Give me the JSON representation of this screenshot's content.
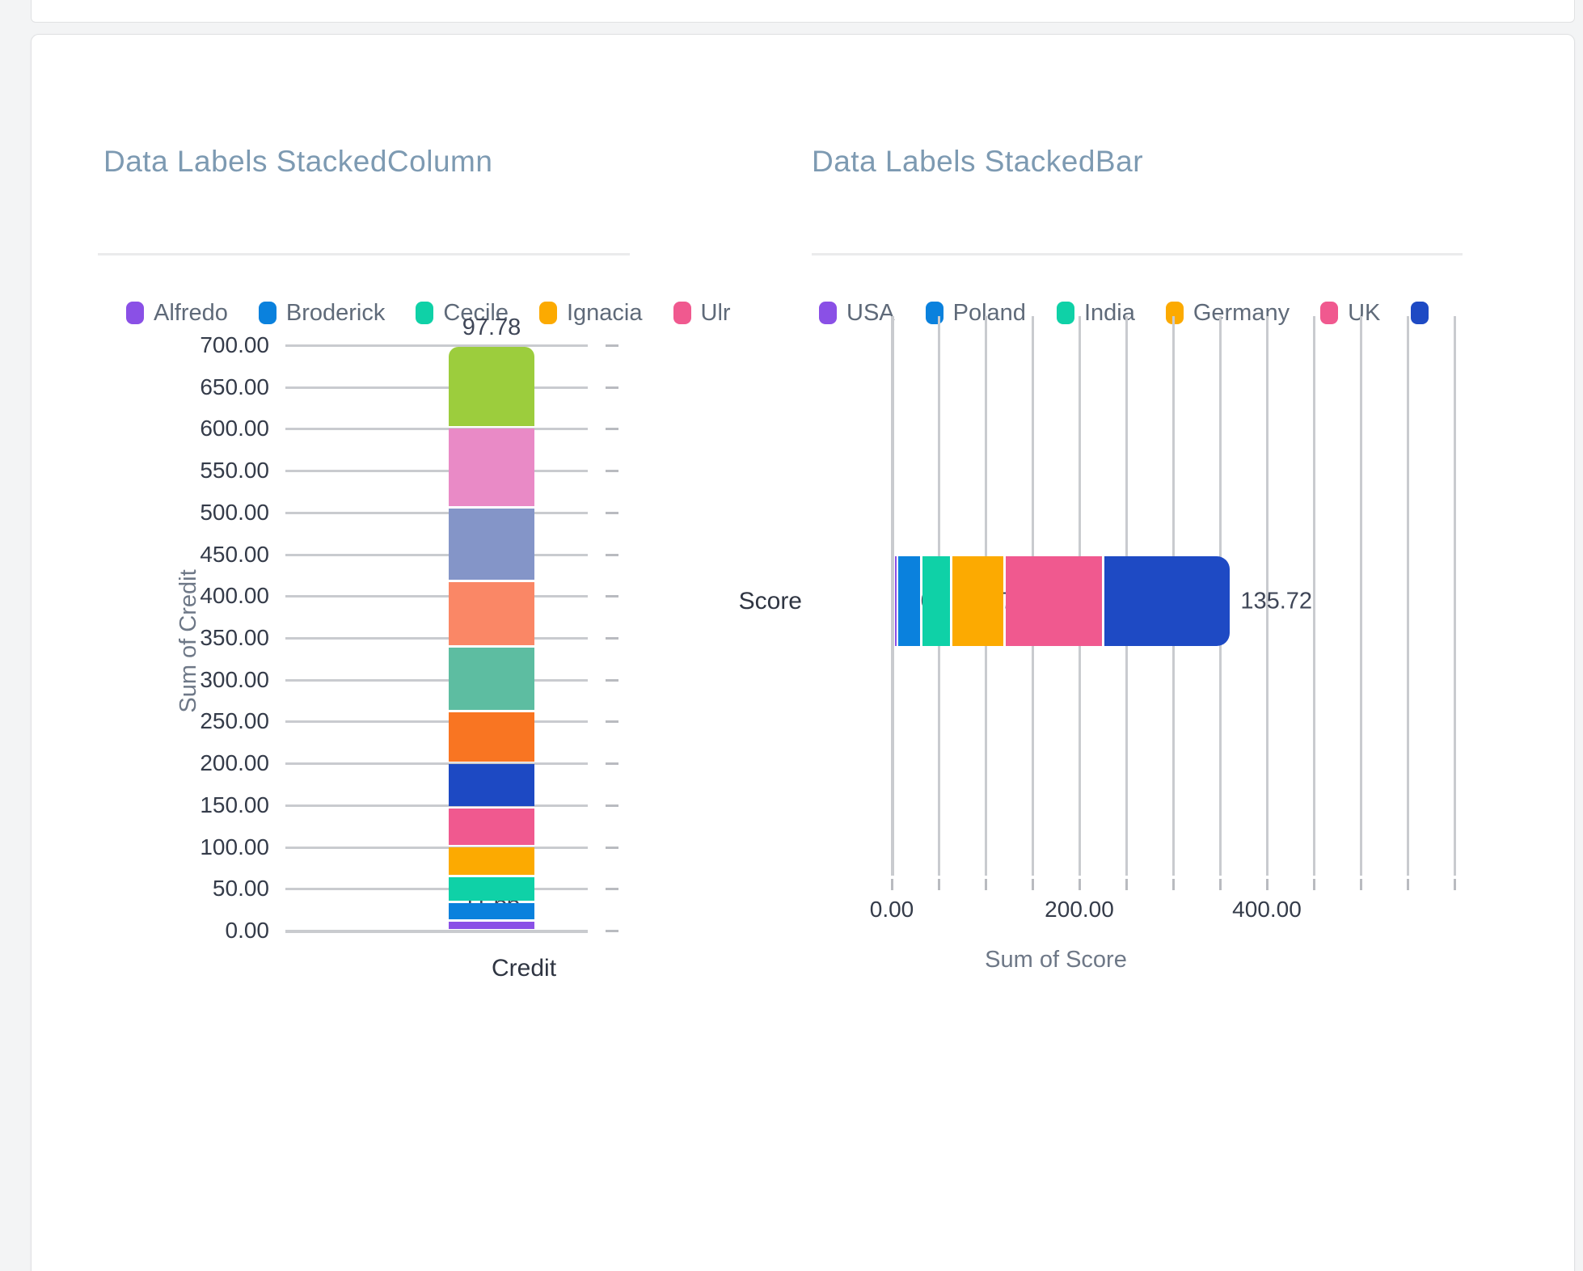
{
  "cards": {
    "top_strip": "",
    "background_color": "#f3f4f5"
  },
  "chart_data": [
    {
      "type": "bar",
      "subtype": "stacked-column",
      "title": "Data Labels StackedColumn",
      "categories": [
        "Credit"
      ],
      "xlabel": "Credit",
      "ylabel": "Sum of Credit",
      "ylim": [
        0,
        700
      ],
      "ytick_step": 50,
      "grid": true,
      "legend_position": "top",
      "y_tick_labels": [
        "0.00",
        "50.00",
        "100.00",
        "150.00",
        "200.00",
        "250.00",
        "300.00",
        "350.00",
        "400.00",
        "450.00",
        "500.00",
        "550.00",
        "600.00",
        "650.00",
        "700.00"
      ],
      "legend": [
        {
          "label": "Alfredo",
          "color": "#8a50e6"
        },
        {
          "label": "Broderick",
          "color": "#0a81dd"
        },
        {
          "label": "Cecile",
          "color": "#0fd1a7"
        },
        {
          "label": "Ignacia",
          "color": "#fcaa01"
        },
        {
          "label": "Ulr",
          "color": "#f0598f"
        }
      ],
      "series": [
        {
          "name": "Alfredo",
          "color": "#8a50e6",
          "value": 11.66,
          "label": "11.66",
          "estimated": false
        },
        {
          "name": "Broderick",
          "color": "#0a81dd",
          "value": 23.12,
          "label": null,
          "estimated": true
        },
        {
          "name": "Cecile",
          "color": "#0fd1a7",
          "value": 30.37,
          "label": "30.37",
          "estimated": false
        },
        {
          "name": "Ignacia",
          "color": "#fcaa01",
          "value": 35.84,
          "label": "35.84",
          "estimated": false
        },
        {
          "name": "Ulr",
          "color": "#f0598f",
          "value": 46.6,
          "label": "46.60",
          "estimated": false
        },
        {
          "name": "",
          "color": "#1d49c3",
          "value": 53.51,
          "label": "53.51",
          "estimated": false
        },
        {
          "name": "",
          "color": "#f97522",
          "value": 61.82,
          "label": "61.82",
          "estimated": false
        },
        {
          "name": "",
          "color": "#5dbda1",
          "value": 77.06,
          "label": "77.06",
          "estimated": false
        },
        {
          "name": "",
          "color": "#fa8766",
          "value": 77.73,
          "label": "77.73",
          "estimated": false
        },
        {
          "name": "",
          "color": "#8495c8",
          "value": 88.11,
          "label": "88.11",
          "estimated": false
        },
        {
          "name": "",
          "color": "#e98ac6",
          "value": 96.4,
          "label": "96.40",
          "estimated": false
        },
        {
          "name": "",
          "color": "#9ccd3d",
          "value": 97.78,
          "label": "97.78",
          "estimated": false
        }
      ],
      "total": 700.0
    },
    {
      "type": "bar",
      "subtype": "stacked-bar-horizontal",
      "title": "Data Labels StackedBar",
      "categories": [
        "Score"
      ],
      "xlabel": "Sum of Score",
      "ylabel": "Score",
      "xlim": [
        0,
        600
      ],
      "xtick_step": 50,
      "grid": true,
      "legend_position": "top",
      "x_tick_labels": [
        "0.00",
        "200.00",
        "400.00"
      ],
      "x_tick_values": [
        0,
        200,
        400
      ],
      "legend": [
        {
          "label": "USA",
          "color": "#8a50e6"
        },
        {
          "label": "Poland",
          "color": "#0a81dd"
        },
        {
          "label": "India",
          "color": "#0fd1a7"
        },
        {
          "label": "Germany",
          "color": "#fcaa01"
        },
        {
          "label": "UK",
          "color": "#f0598f"
        },
        {
          "label": "",
          "color": "#1e4ac4"
        }
      ],
      "series": [
        {
          "name": "USA",
          "color": "#8a50e6",
          "value": 4.0,
          "label": "4.00",
          "estimated": false
        },
        {
          "name": "Poland",
          "color": "#0a81dd",
          "value": 26.0,
          "label": null,
          "estimated": true
        },
        {
          "name": "India",
          "color": "#0fd1a7",
          "value": 31.97,
          "label": "31.97",
          "estimated": false
        },
        {
          "name": "Germany",
          "color": "#fcaa01",
          "value": 56.5,
          "label": null,
          "estimated": true
        },
        {
          "name": "UK",
          "color": "#f0598f",
          "value": 105.6,
          "label": "105.60",
          "estimated": false
        },
        {
          "name": "",
          "color": "#1e4ac4",
          "value": 135.72,
          "label": "135.72",
          "estimated": false
        }
      ]
    }
  ]
}
